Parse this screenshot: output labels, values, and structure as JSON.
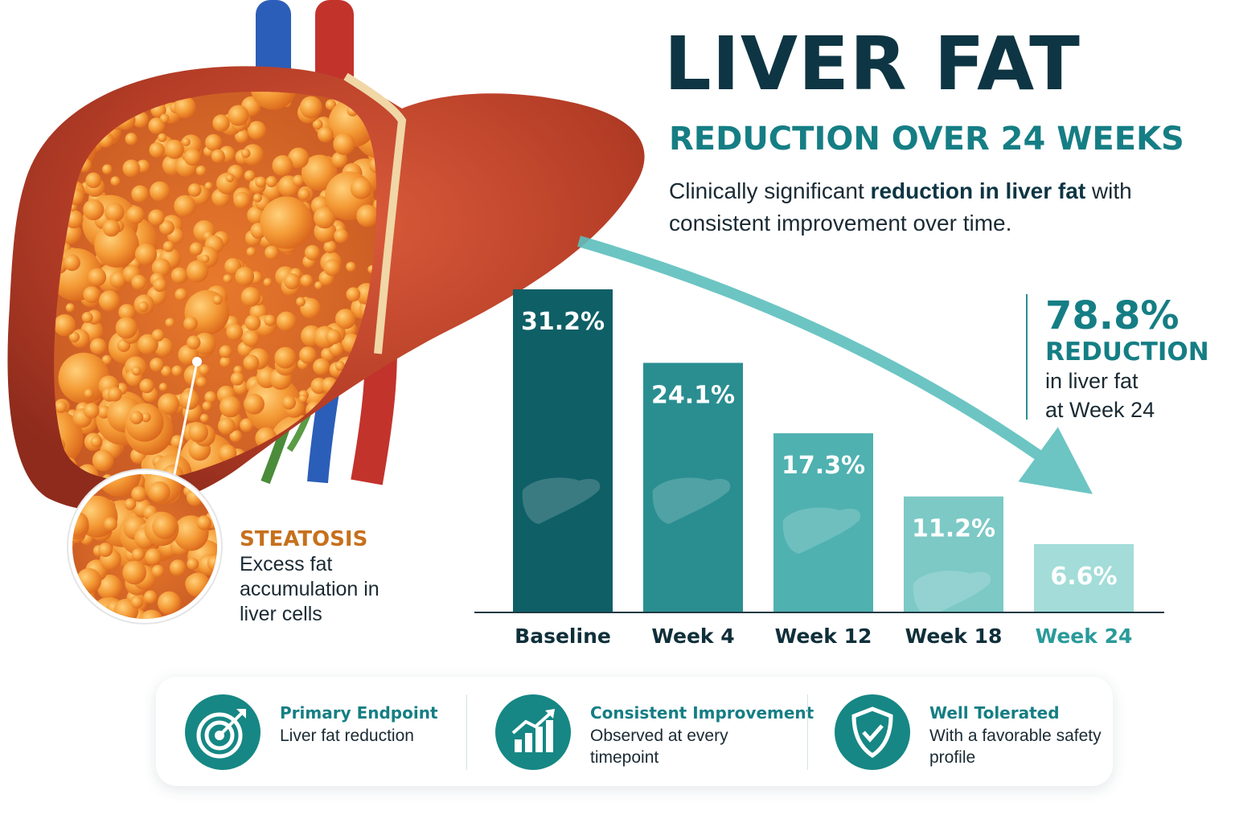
{
  "header": {
    "title": "LIVER FAT",
    "subtitle": "REDUCTION OVER 24 WEEKS",
    "description_pre": "Clinically significant ",
    "description_bold": "reduction in liver fat",
    "description_post": " with consistent improvement over time."
  },
  "callout": {
    "value": "78.8%",
    "label": "REDUCTION",
    "line1": "in liver fat",
    "line2": "at Week 24"
  },
  "steatosis": {
    "title": "STEATOSIS",
    "text": "Excess fat accumulation in liver cells"
  },
  "chart_data": {
    "type": "bar",
    "categories": [
      "Baseline",
      "Week 4",
      "Week 12",
      "Week 18",
      "Week 24"
    ],
    "values": [
      31.2,
      24.1,
      17.3,
      11.2,
      6.6
    ],
    "value_labels": [
      "31.2%",
      "24.1%",
      "17.3%",
      "11.2%",
      "6.6%"
    ],
    "unit": "%",
    "ylim": [
      0,
      31.2
    ],
    "grid": false,
    "highlight_category": "Week 24",
    "colors": [
      "#0f5f66",
      "#2a8e90",
      "#4fb1b0",
      "#7cc9c6",
      "#a3dcd8"
    ],
    "trend_arrow_color": "#5dbfbd"
  },
  "benefits": [
    {
      "title": "Primary Endpoint",
      "text": "Liver fat reduction",
      "icon": "target-icon"
    },
    {
      "title": "Consistent Improvement",
      "text": "Observed at every timepoint",
      "icon": "growth-chart-icon"
    },
    {
      "title": "Well Tolerated",
      "text": "With a favorable safety profile",
      "icon": "shield-check-icon"
    }
  ],
  "colors": {
    "title": "#0e3543",
    "accent": "#157e84",
    "steatosis": "#c6701c",
    "liver": "#c9482e"
  }
}
